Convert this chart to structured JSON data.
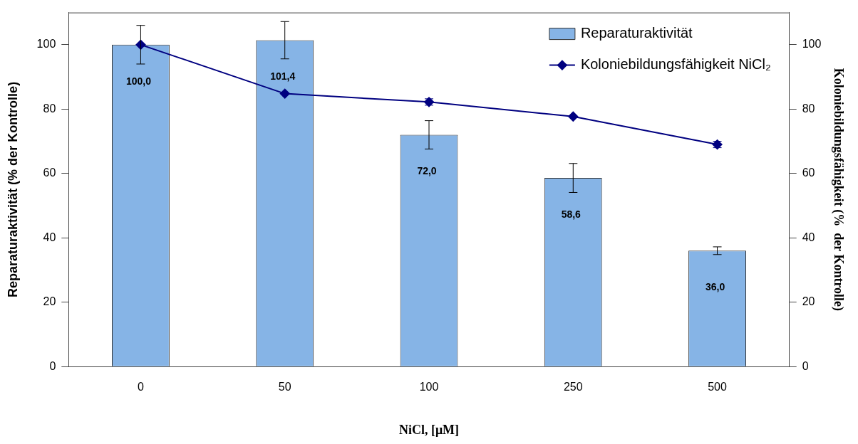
{
  "chart_data": {
    "type": "bar",
    "categories": [
      "0",
      "50",
      "100",
      "250",
      "500"
    ],
    "xlabel": "NiCl, [μM]",
    "ylabel": "Reparaturaktivität (% der Kontrolle)",
    "y2label": "Koloniebildungsfähigkeit (%  der Kontrolle)",
    "ylim": [
      0,
      110
    ],
    "yticks": [
      0,
      20,
      40,
      60,
      80,
      100
    ],
    "y2lim": [
      0,
      110
    ],
    "y2ticks": [
      0,
      20,
      40,
      60,
      80,
      100
    ],
    "grid": false,
    "legend": "top right",
    "series": [
      {
        "name": "Reparaturaktivität",
        "color": "#86b4e6",
        "values": [
          100.0,
          101.4,
          72.0,
          58.6,
          36.0
        ],
        "errors": [
          6,
          5.8,
          4.4,
          4.5,
          1.2
        ],
        "value_labels": [
          "100,0",
          "101,4",
          "72,0",
          "58,6",
          "36,0"
        ]
      },
      {
        "name": "Koloniebildungsfähigkeit NiCl₂",
        "type": "line",
        "axis": "y2",
        "color": "#000080",
        "marker": "diamond",
        "values": [
          100,
          84.8,
          82.2,
          77.7,
          69.0
        ],
        "errors": [
          null,
          null,
          1,
          null,
          1
        ]
      }
    ]
  }
}
